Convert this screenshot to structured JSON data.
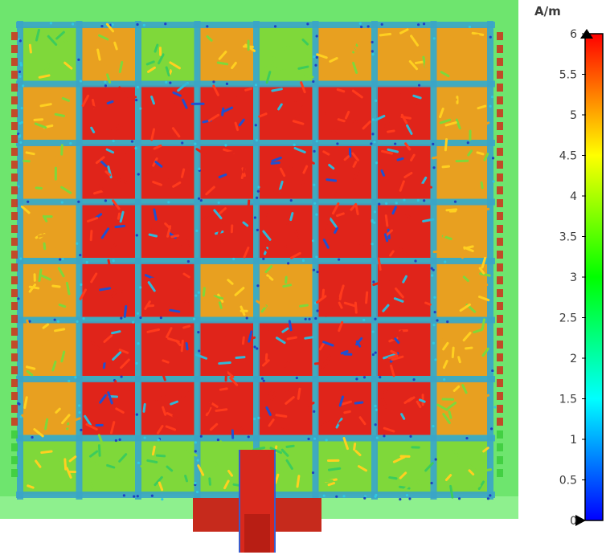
{
  "legend": {
    "unit": "A/m",
    "ticks": [
      "0",
      "0.5",
      "1",
      "1.5",
      "2",
      "2.5",
      "3",
      "3.5",
      "4",
      "4.5",
      "5",
      "5.5",
      "6"
    ],
    "min": 0,
    "max": 6,
    "colors": [
      "#0000ff",
      "#0080ff",
      "#00ffff",
      "#00ff80",
      "#00ff00",
      "#80ff00",
      "#ffff00",
      "#ff8000",
      "#ff0000"
    ]
  },
  "field_view": {
    "background_color": "#6ee56e",
    "substrate_color": "#8ef08e",
    "grid_line_color": "#3aa4c8",
    "cell_colors": {
      "high": "#e0241a",
      "mid": "#e8a020",
      "low": "#7fd83a"
    },
    "cell_levels": [
      [
        "low",
        "mid",
        "low",
        "mid",
        "low",
        "mid",
        "mid",
        "mid"
      ],
      [
        "mid",
        "high",
        "high",
        "high",
        "high",
        "high",
        "high",
        "mid"
      ],
      [
        "mid",
        "high",
        "high",
        "high",
        "high",
        "high",
        "high",
        "mid"
      ],
      [
        "mid",
        "high",
        "high",
        "high",
        "high",
        "high",
        "high",
        "mid"
      ],
      [
        "mid",
        "high",
        "high",
        "mid",
        "mid",
        "high",
        "high",
        "mid"
      ],
      [
        "mid",
        "high",
        "high",
        "high",
        "high",
        "high",
        "high",
        "mid"
      ],
      [
        "mid",
        "high",
        "high",
        "high",
        "high",
        "high",
        "high",
        "mid"
      ],
      [
        "low",
        "low",
        "low",
        "low",
        "low",
        "low",
        "low",
        "low"
      ]
    ]
  }
}
